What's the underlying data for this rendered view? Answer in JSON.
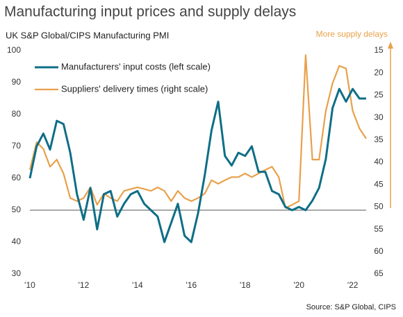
{
  "chart_data": {
    "type": "line",
    "title": "Manufacturing input prices and supply delays",
    "subtitle": "UK S&P Global/CIPS Manufacturing PMI",
    "annotation": "More supply delays",
    "source": "Source: S&P Global, CIPS",
    "x": [
      2010,
      2010.25,
      2010.5,
      2010.75,
      2011,
      2011.25,
      2011.5,
      2011.75,
      2012,
      2012.25,
      2012.5,
      2012.75,
      2013,
      2013.25,
      2013.5,
      2013.75,
      2014,
      2014.25,
      2014.5,
      2014.75,
      2015,
      2015.25,
      2015.5,
      2015.75,
      2016,
      2016.25,
      2016.5,
      2016.75,
      2017,
      2017.25,
      2017.5,
      2017.75,
      2018,
      2018.25,
      2018.5,
      2018.75,
      2019,
      2019.25,
      2019.5,
      2019.75,
      2020,
      2020.25,
      2020.5,
      2020.75,
      2021,
      2021.25,
      2021.5,
      2021.75,
      2022,
      2022.25,
      2022.5
    ],
    "series": [
      {
        "name": "Manufacturers' input costs (left scale)",
        "color": "#0e6e86",
        "values": [
          60,
          70,
          74,
          69,
          78,
          77,
          68,
          55,
          47,
          57,
          44,
          55,
          56,
          48,
          52,
          55,
          56,
          52,
          50,
          48,
          40,
          46,
          52,
          42,
          40,
          49,
          61,
          75,
          84,
          67,
          64,
          68,
          67,
          70,
          62,
          62,
          56,
          55,
          51,
          50,
          51,
          50,
          53,
          57,
          66,
          82,
          88,
          84,
          88,
          85,
          85
        ]
      },
      {
        "name": "Suppliers' delivery times (right scale)",
        "color": "#e8a04a",
        "axis": "y2",
        "values": [
          41.7,
          35.5,
          37,
          41,
          39.4,
          42.5,
          48,
          48.7,
          48,
          45.6,
          49.5,
          47,
          48,
          48.7,
          46.4,
          46,
          45.6,
          46,
          46.4,
          45.6,
          46.4,
          48.7,
          46.4,
          48,
          48.7,
          48,
          47,
          44,
          44.8,
          44,
          43.3,
          43.3,
          42.5,
          43.3,
          42.5,
          41.7,
          41,
          43.3,
          50.2,
          49.5,
          48.7,
          16,
          39.4,
          39.4,
          28.5,
          22.3,
          18.4,
          19,
          28.5,
          32.4,
          34.7
        ]
      }
    ],
    "xlim": [
      2010,
      2022.5
    ],
    "xticks": [
      {
        "value": 2010,
        "label": "'10"
      },
      {
        "value": 2012,
        "label": "'12"
      },
      {
        "value": 2014,
        "label": "'14"
      },
      {
        "value": 2016,
        "label": "'16"
      },
      {
        "value": 2018,
        "label": "'18"
      },
      {
        "value": 2020,
        "label": "'20"
      },
      {
        "value": 2022,
        "label": "'22"
      }
    ],
    "ylim": [
      30,
      100
    ],
    "yticks": [
      30,
      40,
      50,
      60,
      70,
      80,
      90,
      100
    ],
    "y2lim": [
      15,
      65
    ],
    "y2ticks": [
      15,
      20,
      25,
      30,
      35,
      40,
      45,
      50,
      55,
      60,
      65
    ],
    "y2_reversed": true,
    "reference_line": 50
  }
}
